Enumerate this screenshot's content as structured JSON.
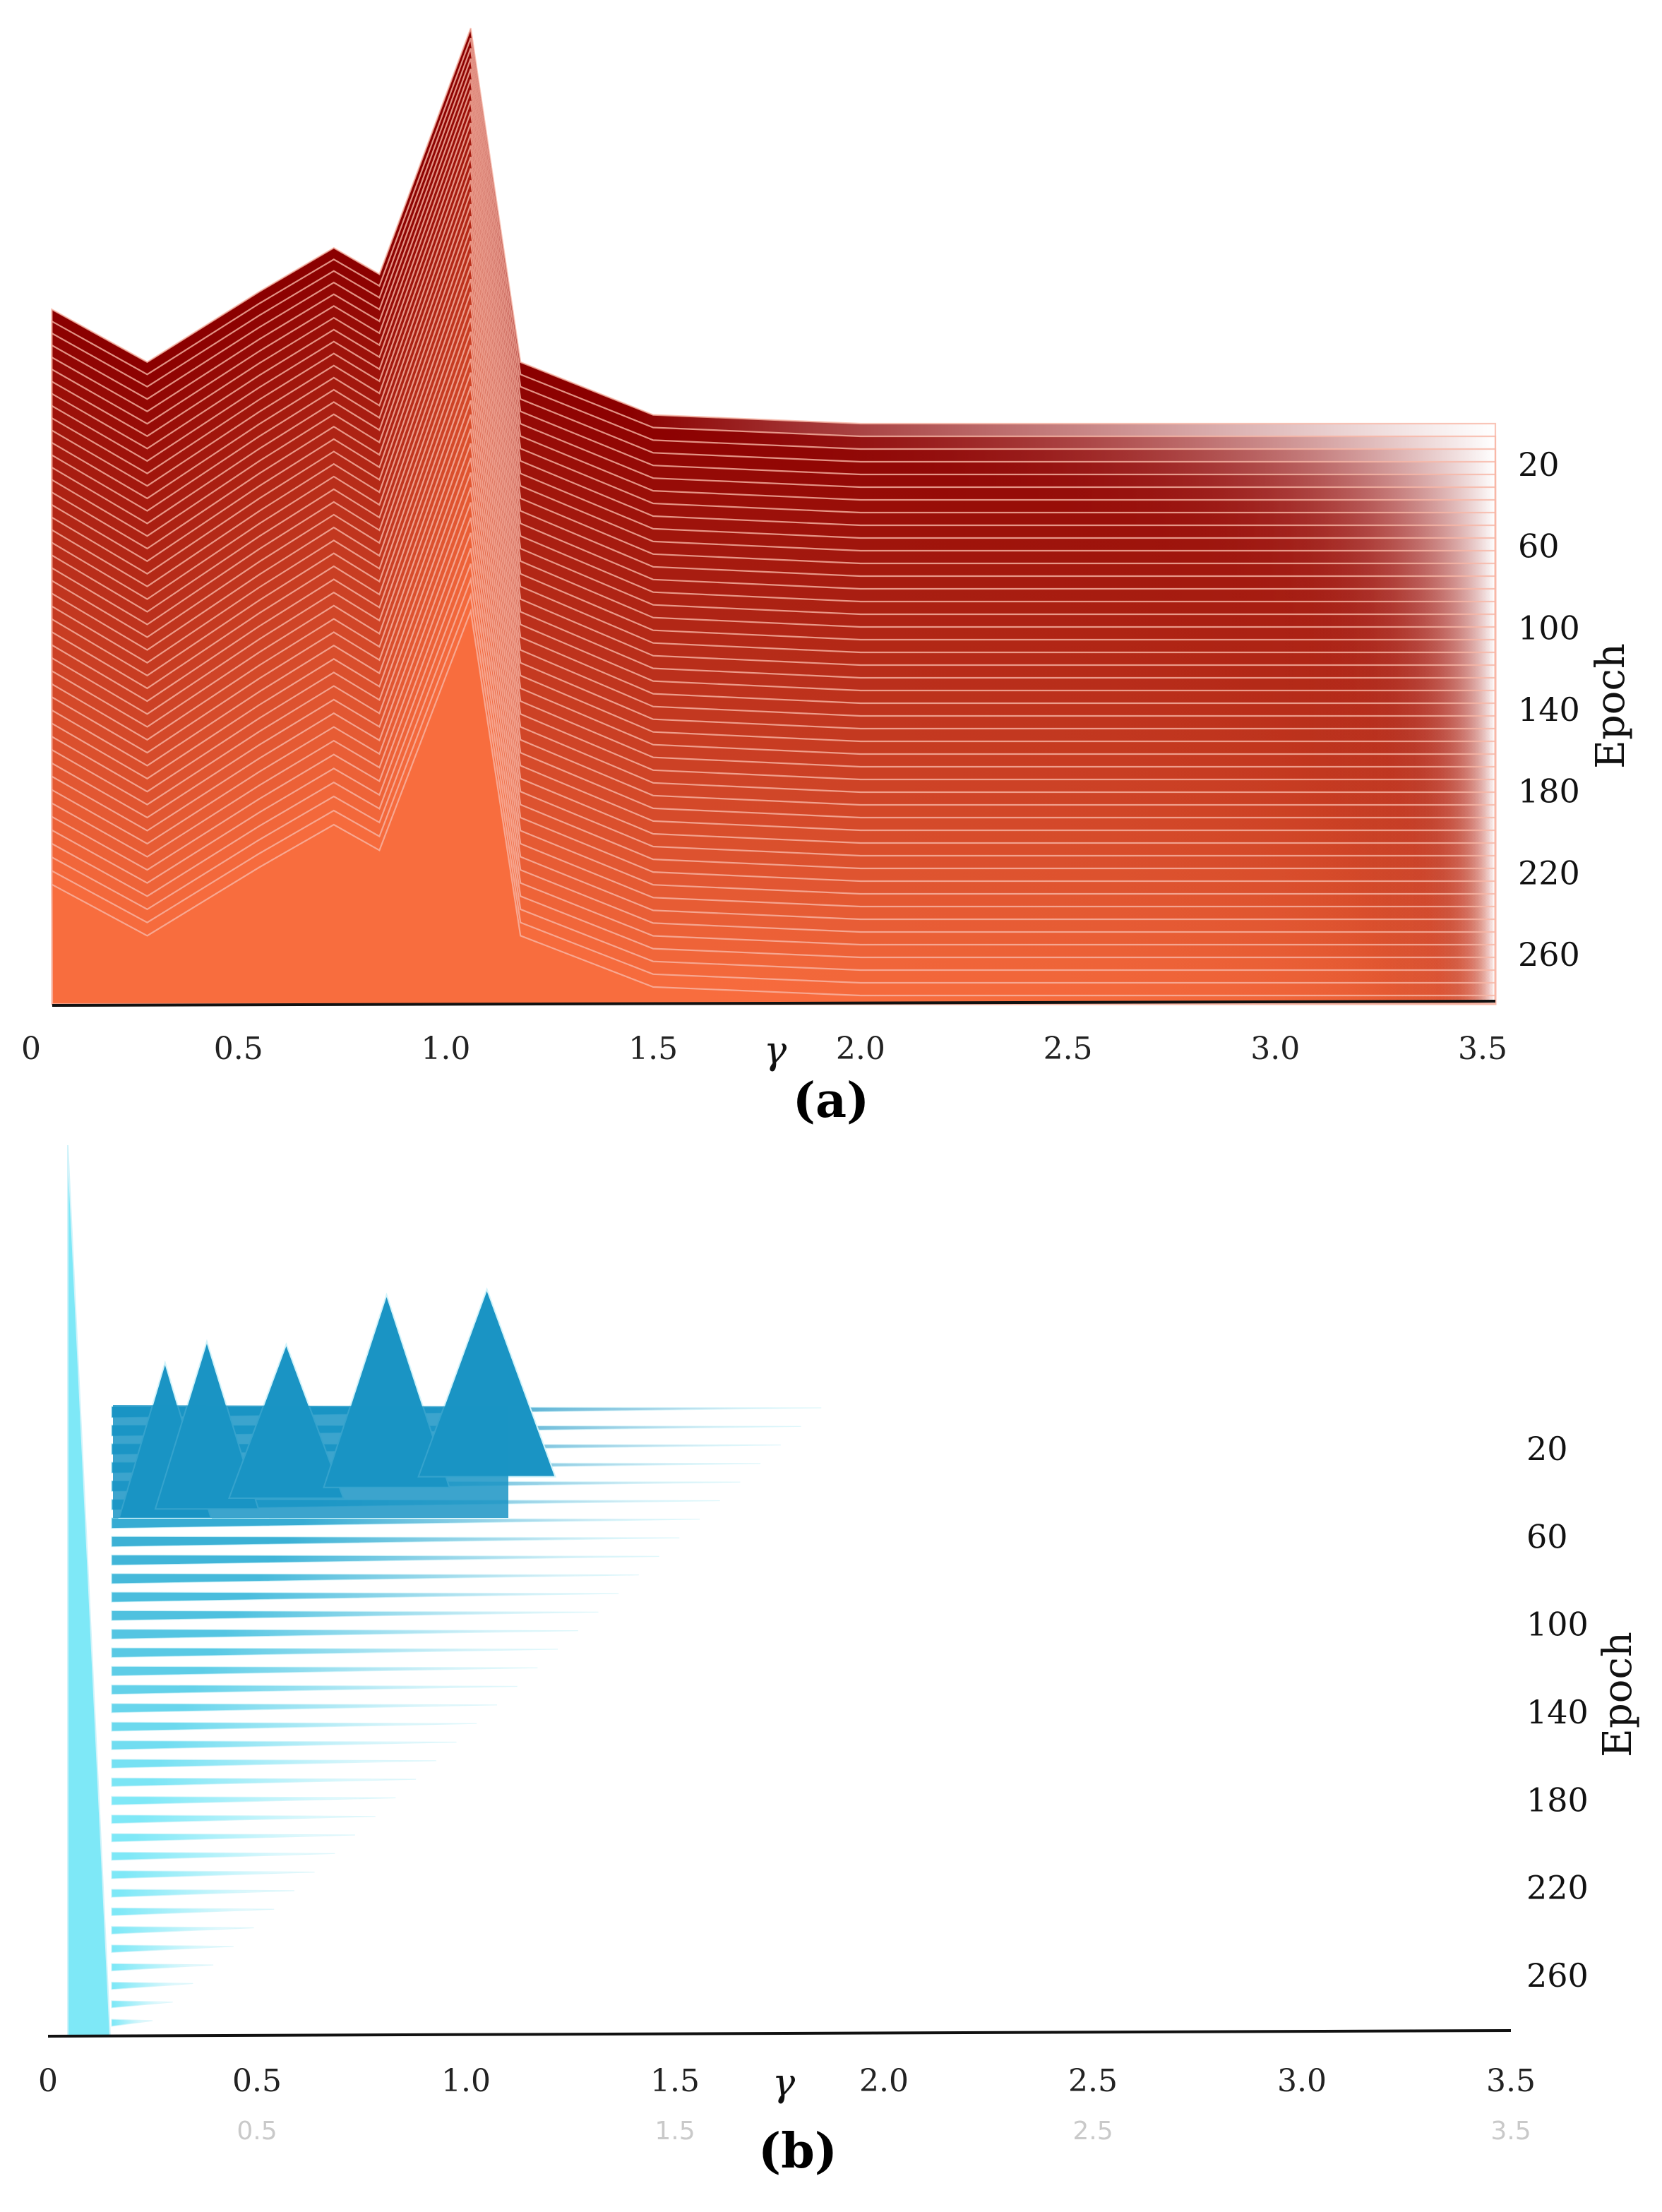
{
  "chart_data": [
    {
      "type": "area",
      "panel_label": "(a)",
      "xlabel": "γ",
      "ylabel": "Epoch",
      "x_ticks": [
        "0",
        "0.5",
        "1.0",
        "1.5",
        "2.0",
        "2.5",
        "3.0",
        "3.5"
      ],
      "y_ticks": [
        "20",
        "60",
        "100",
        "140",
        "180",
        "220",
        "260"
      ],
      "xlim": [
        0,
        3.5
      ],
      "epochs": [
        0,
        280
      ],
      "colors": {
        "early": "#8b0000",
        "late": "#f86d3e",
        "separator": "#f7b7a6"
      },
      "representative_profile": {
        "x": [
          0.05,
          0.28,
          0.55,
          0.73,
          0.84,
          1.06,
          1.18,
          1.5,
          2.0
        ],
        "y": [
          0.68,
          0.62,
          0.7,
          0.75,
          0.72,
          1.0,
          0.62,
          0.56,
          0.55
        ]
      }
    },
    {
      "type": "area",
      "panel_label": "(b)",
      "xlabel": "γ",
      "ylabel": "Epoch",
      "x_ticks": [
        "0",
        "0.5",
        "1.0",
        "1.5",
        "2.0",
        "2.5",
        "3.0",
        "3.5"
      ],
      "y_ticks": [
        "20",
        "60",
        "100",
        "140",
        "180",
        "220",
        "260"
      ],
      "secondary_x_ticks": [
        "0.5",
        "1.5",
        "2.5",
        "3.5"
      ],
      "xlim": [
        0,
        3.5
      ],
      "epochs": [
        0,
        280
      ],
      "colors": {
        "peaks": "#1a94c4",
        "base": "#7ee8f7",
        "separator": "#d2f3fa"
      },
      "peak_positions": [
        0.28,
        0.38,
        0.57,
        0.81,
        1.05
      ],
      "peak_epochs": [
        5,
        12,
        20,
        28,
        36
      ]
    }
  ]
}
